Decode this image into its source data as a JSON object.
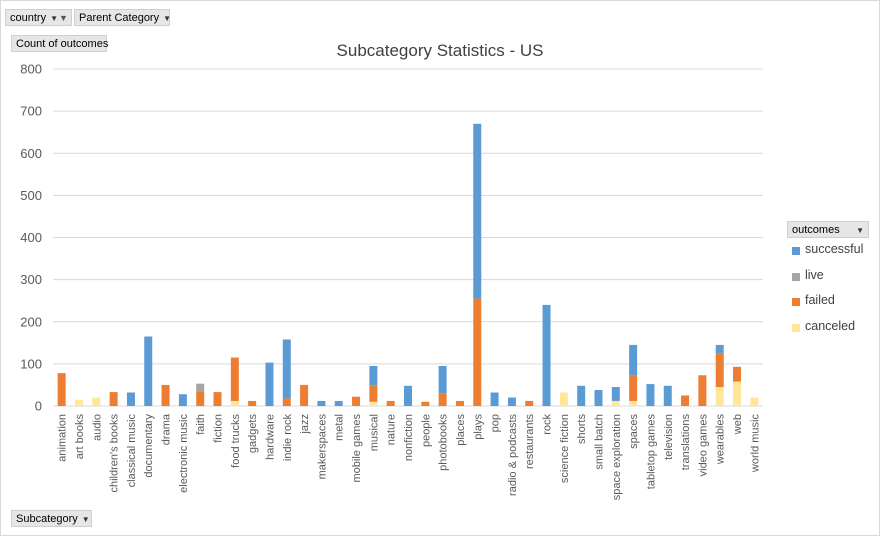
{
  "filters": {
    "country_label": "country",
    "parent_category_label": "Parent Category",
    "count_label": "Count of outcomes",
    "subcategory_label": "Subcategory",
    "outcomes_label": "outcomes"
  },
  "chart_data": {
    "type": "bar",
    "stacked": true,
    "title": "Subcategory Statistics - US",
    "xlabel": "",
    "ylabel": "",
    "ylim": [
      0,
      800
    ],
    "yticks": [
      0,
      100,
      200,
      300,
      400,
      500,
      600,
      700,
      800
    ],
    "grid": true,
    "legend_position": "right",
    "categories": [
      "animation",
      "art books",
      "audio",
      "children's books",
      "classical music",
      "documentary",
      "drama",
      "electronic music",
      "faith",
      "fiction",
      "food trucks",
      "gadgets",
      "hardware",
      "indie rock",
      "jazz",
      "makerspaces",
      "metal",
      "mobile games",
      "musical",
      "nature",
      "nonfiction",
      "people",
      "photobooks",
      "places",
      "plays",
      "pop",
      "radio & podcasts",
      "restaurants",
      "rock",
      "science fiction",
      "shorts",
      "small batch",
      "space exploration",
      "spaces",
      "tabletop games",
      "television",
      "translations",
      "video games",
      "wearables",
      "web",
      "world music"
    ],
    "series": [
      {
        "name": "canceled",
        "color": "#ffe699",
        "values": [
          0,
          15,
          20,
          0,
          0,
          0,
          0,
          0,
          0,
          0,
          12,
          0,
          0,
          0,
          0,
          0,
          0,
          0,
          10,
          0,
          0,
          0,
          0,
          0,
          0,
          0,
          0,
          0,
          0,
          32,
          0,
          0,
          12,
          12,
          0,
          0,
          0,
          0,
          45,
          58,
          20
        ]
      },
      {
        "name": "failed",
        "color": "#ed7d31",
        "values": [
          78,
          0,
          0,
          33,
          0,
          0,
          50,
          0,
          35,
          33,
          103,
          12,
          0,
          18,
          50,
          0,
          0,
          22,
          38,
          12,
          0,
          10,
          30,
          12,
          255,
          0,
          0,
          12,
          0,
          0,
          0,
          0,
          0,
          60,
          0,
          0,
          25,
          73,
          80,
          35,
          0
        ]
      },
      {
        "name": "live",
        "color": "#a5a5a5",
        "values": [
          0,
          0,
          0,
          0,
          0,
          0,
          0,
          0,
          18,
          0,
          0,
          0,
          0,
          0,
          0,
          0,
          0,
          0,
          0,
          0,
          0,
          0,
          0,
          0,
          0,
          0,
          0,
          0,
          0,
          0,
          0,
          0,
          0,
          0,
          0,
          0,
          0,
          0,
          0,
          0,
          0
        ]
      },
      {
        "name": "successful",
        "color": "#5b9bd5",
        "values": [
          0,
          0,
          0,
          0,
          32,
          165,
          0,
          28,
          0,
          0,
          0,
          0,
          103,
          140,
          0,
          12,
          12,
          0,
          47,
          0,
          48,
          0,
          65,
          0,
          415,
          32,
          20,
          0,
          240,
          0,
          48,
          38,
          33,
          73,
          52,
          48,
          0,
          0,
          20,
          0,
          0
        ]
      }
    ]
  }
}
